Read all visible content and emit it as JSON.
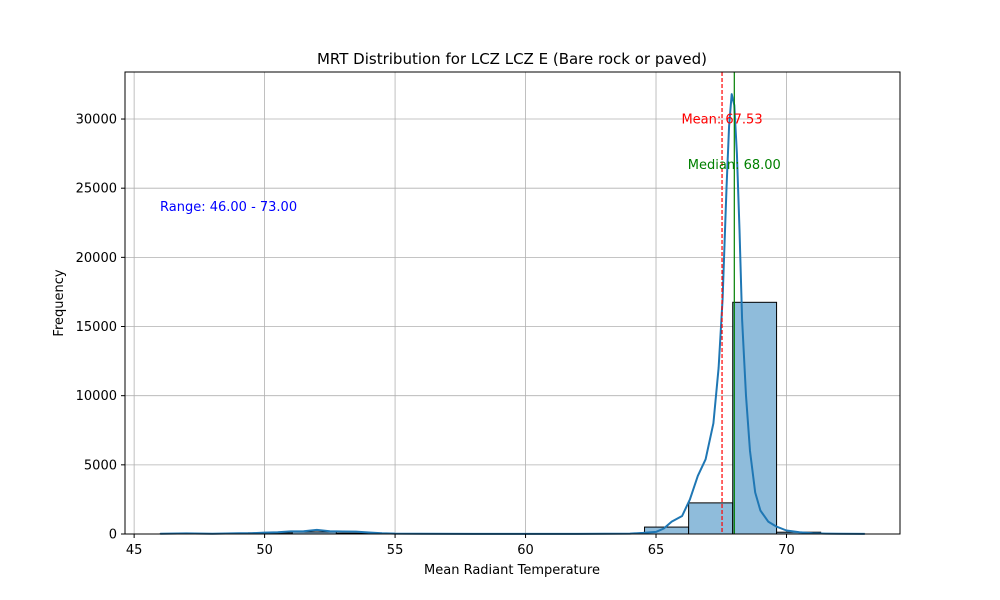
{
  "chart_data": {
    "type": "bar",
    "title": "MRT Distribution for LCZ LCZ E (Bare rock or paved)",
    "xlabel": "Mean Radiant Temperature",
    "ylabel": "Frequency",
    "xlim": [
      44.65,
      74.35
    ],
    "ylim": [
      0,
      33400
    ],
    "xticks": [
      45,
      50,
      55,
      60,
      65,
      70
    ],
    "yticks": [
      0,
      5000,
      10000,
      15000,
      20000,
      25000,
      30000
    ],
    "grid": true,
    "bin_edges": [
      46.0,
      47.69,
      49.38,
      51.06,
      52.75,
      54.44,
      56.12,
      57.81,
      59.5,
      61.19,
      62.88,
      64.56,
      66.25,
      67.94,
      69.62,
      71.31,
      73.0
    ],
    "counts": [
      20,
      5,
      80,
      150,
      60,
      0,
      0,
      0,
      0,
      0,
      0,
      500,
      2250,
      16750,
      130,
      5
    ],
    "kde": {
      "x": [
        46,
        47,
        48,
        49,
        49.5,
        50,
        50.5,
        51,
        51.5,
        52,
        52.5,
        53,
        53.5,
        54,
        54.5,
        55,
        56,
        58,
        60,
        62,
        63,
        64,
        64.5,
        65,
        65.3,
        65.6,
        66,
        66.3,
        66.6,
        66.9,
        67.2,
        67.4,
        67.55,
        67.7,
        67.8,
        67.9,
        68.0,
        68.1,
        68.2,
        68.3,
        68.45,
        68.6,
        68.8,
        69.0,
        69.3,
        69.6,
        70.0,
        70.5,
        71.0,
        71.5,
        72,
        73
      ],
      "y": [
        20,
        40,
        20,
        50,
        60,
        100,
        130,
        190,
        200,
        300,
        200,
        180,
        170,
        110,
        60,
        30,
        15,
        10,
        10,
        10,
        15,
        30,
        80,
        150,
        400,
        900,
        1300,
        2500,
        4200,
        5400,
        8000,
        12000,
        17000,
        25000,
        29500,
        31800,
        31000,
        27500,
        22000,
        15500,
        10000,
        6000,
        3000,
        1700,
        900,
        550,
        250,
        120,
        60,
        30,
        15,
        5
      ]
    },
    "mean_line": {
      "value": 67.53,
      "label": "Mean: 67.53",
      "color": "#ff0000"
    },
    "median_line": {
      "value": 68.0,
      "label": "Median: 68.00",
      "color": "#008000"
    },
    "range_annotation": {
      "label": "Range: 46.00 - 73.00",
      "color": "#0000ff"
    },
    "bar_color": "#8fbcdb",
    "kde_color": "#1f77b4"
  }
}
